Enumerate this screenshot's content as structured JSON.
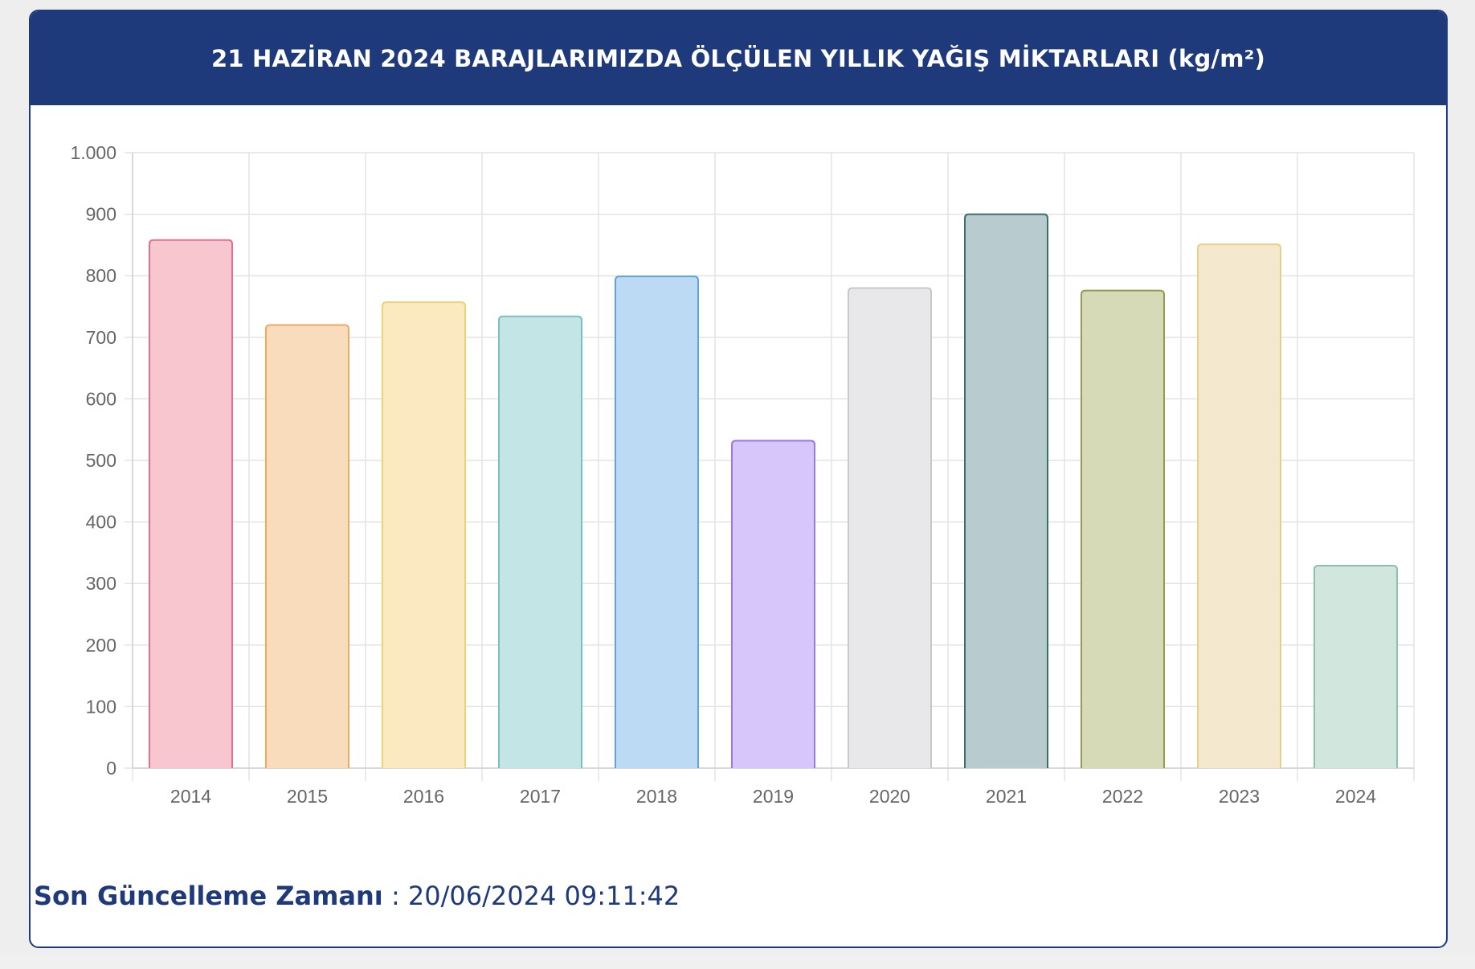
{
  "header": {
    "title": "21 HAZİRAN 2024 BARAJLARIMIZDA ÖLÇÜLEN YILLIK YAĞIŞ MİKTARLARI (kg/m²)"
  },
  "footer": {
    "label": "Son Güncelleme Zamanı",
    "separator": " : ",
    "value": "20/06/2024 09:11:42"
  },
  "colors": {
    "header_bg": "#1e3a7b",
    "footer_text": "#1e3a7b"
  },
  "chart_data": {
    "type": "bar",
    "title": "21 HAZİRAN 2024 BARAJLARIMIZDA ÖLÇÜLEN YILLIK YAĞIŞ MİKTARLARI (kg/m²)",
    "xlabel": "",
    "ylabel": "",
    "categories": [
      "2014",
      "2015",
      "2016",
      "2017",
      "2018",
      "2019",
      "2020",
      "2021",
      "2022",
      "2023",
      "2024"
    ],
    "values": [
      858,
      720,
      757,
      734,
      799,
      532,
      780,
      900,
      776,
      851,
      329
    ],
    "ylim": [
      0,
      1000
    ],
    "yticks": [
      0,
      100,
      200,
      300,
      400,
      500,
      600,
      700,
      800,
      900,
      1000
    ],
    "ytick_labels": [
      "0",
      "100",
      "200",
      "300",
      "400",
      "500",
      "600",
      "700",
      "800",
      "900",
      "1.000"
    ],
    "grid": true,
    "legend": "none",
    "bar_fills": [
      "#f7c6cf",
      "#f9dcbb",
      "#fbe9c2",
      "#c4e5e5",
      "#bcdaf3",
      "#d6c6f9",
      "#e8e8ea",
      "#b8ccd0",
      "#d6dab6",
      "#f4e9cf",
      "#d1e7de"
    ],
    "bar_strokes": [
      "#e0708d",
      "#eeaa60",
      "#f2d073",
      "#79c1c0",
      "#5fa4e0",
      "#9a78e6",
      "#c8c8cc",
      "#3e6e6a",
      "#8f9e4f",
      "#e8cf88",
      "#8cc2ab"
    ]
  }
}
